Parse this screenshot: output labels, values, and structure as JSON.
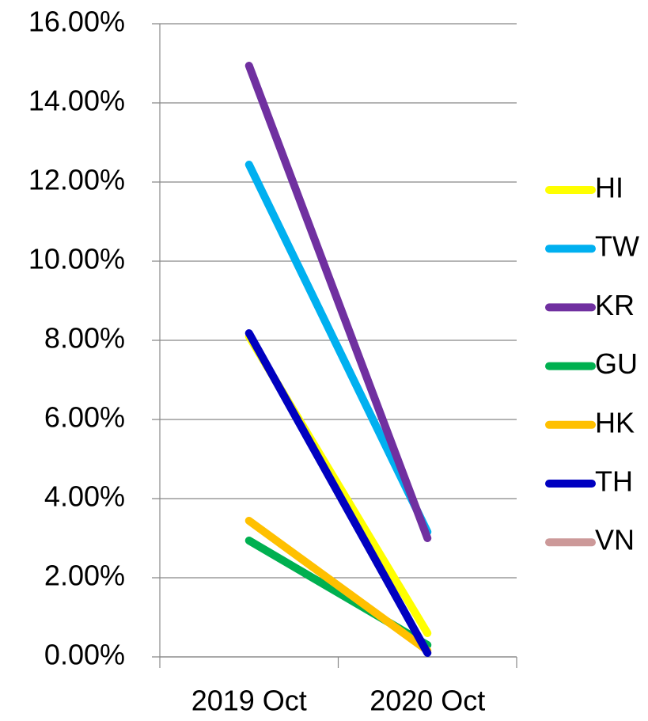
{
  "chart_data": {
    "type": "line",
    "categories": [
      "2019 Oct",
      "2020 Oct"
    ],
    "series": [
      {
        "name": "HI",
        "color": "#ffff00",
        "values": [
          8.1,
          0.6
        ]
      },
      {
        "name": "TW",
        "color": "#00b0f0",
        "values": [
          12.44,
          3.16
        ]
      },
      {
        "name": "KR",
        "color": "#7030a0",
        "values": [
          14.94,
          3.0
        ]
      },
      {
        "name": "GU",
        "color": "#00b050",
        "values": [
          2.94,
          0.3
        ]
      },
      {
        "name": "HK",
        "color": "#ffc000",
        "values": [
          3.44,
          0.16
        ]
      },
      {
        "name": "TH",
        "color": "#0000c0",
        "values": [
          8.18,
          0.1
        ]
      },
      {
        "name": "VN",
        "color": "#cc9999",
        "values": [
          null,
          null
        ]
      }
    ],
    "ylim": [
      0,
      16
    ],
    "yticks": [
      {
        "value": 0,
        "label": "0.00%"
      },
      {
        "value": 2,
        "label": "2.00%"
      },
      {
        "value": 4,
        "label": "4.00%"
      },
      {
        "value": 6,
        "label": "6.00%"
      },
      {
        "value": 8,
        "label": "8.00%"
      },
      {
        "value": 10,
        "label": "10.00%"
      },
      {
        "value": 12,
        "label": "12.00%"
      },
      {
        "value": 14,
        "label": "14.00%"
      },
      {
        "value": 16,
        "label": "16.00%"
      }
    ],
    "grid": true,
    "legend": "right"
  }
}
